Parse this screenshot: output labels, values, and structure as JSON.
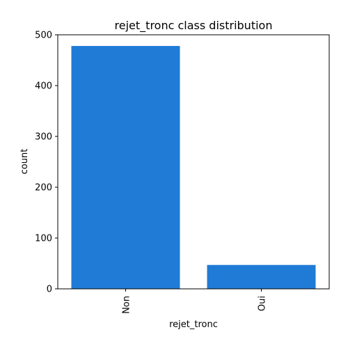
{
  "chart_data": {
    "type": "bar",
    "title": "rejet_tronc class distribution",
    "xlabel": "rejet_tronc",
    "ylabel": "count",
    "categories": [
      "Non",
      "Oui"
    ],
    "values": [
      478,
      47
    ],
    "ylim": [
      0,
      500
    ],
    "yticks": [
      0,
      100,
      200,
      300,
      400,
      500
    ],
    "grid": false,
    "bar_color": "#1f7bd6"
  }
}
